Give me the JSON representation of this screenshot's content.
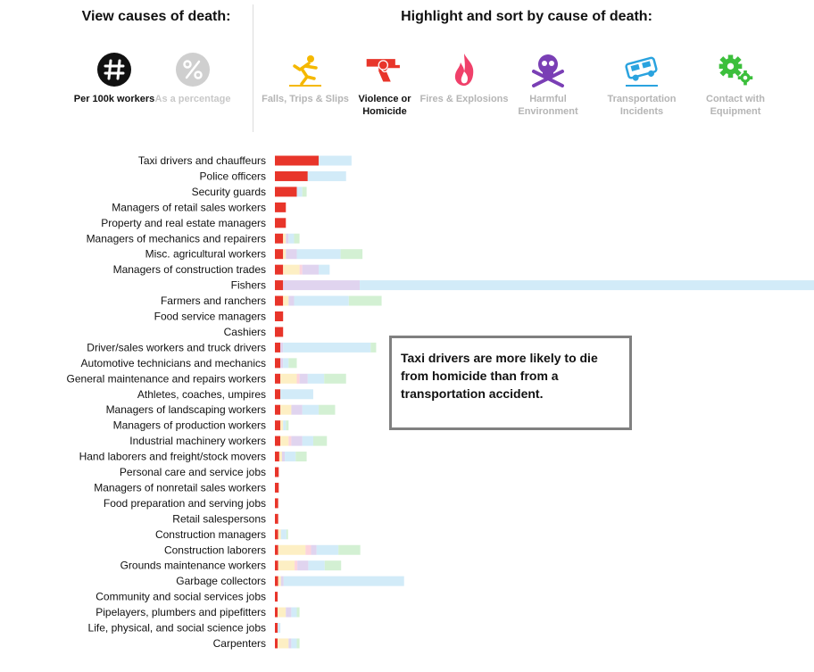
{
  "header": {
    "view_title": "View causes of death:",
    "highlight_title": "Highlight and sort by cause of death:"
  },
  "view_options": [
    {
      "label": "Per 100k workers",
      "icon": "number-sign-icon",
      "active": true
    },
    {
      "label": "As a percentage",
      "icon": "percent-icon",
      "active": false
    }
  ],
  "causes": [
    {
      "label": "Falls, Trips & Slips",
      "icon": "falling-person-icon",
      "color": "#f5b800",
      "light": "#fdefc4",
      "active": false
    },
    {
      "label": "Violence or Homicide",
      "icon": "revolver-icon",
      "color": "#e8352a",
      "light": "#fbd3cf",
      "active": true
    },
    {
      "label": "Fires & Explosions",
      "icon": "flame-icon",
      "color": "#f0406a",
      "light": "#fcd4dd",
      "active": false
    },
    {
      "label": "Harmful Environment",
      "icon": "skull-crossbones-icon",
      "color": "#7a3fb5",
      "light": "#e0d4ef",
      "active": false
    },
    {
      "label": "Transportation Incidents",
      "icon": "car-icon",
      "color": "#2aa3df",
      "light": "#d2ebf8",
      "active": false
    },
    {
      "label": "Contact with Equipment",
      "icon": "gears-icon",
      "color": "#3cbf3c",
      "light": "#d3f0d3",
      "active": false
    }
  ],
  "callout": "Taxi drivers are more likely to die from homicide than from a transportation accident.",
  "chart_data": {
    "type": "bar",
    "orientation": "horizontal",
    "stacked": true,
    "unit": "deaths per 100k workers",
    "series_order": [
      "Violence or Homicide",
      "Falls, Trips & Slips",
      "Fires & Explosions",
      "Harmful Environment",
      "Transportation Incidents",
      "Contact with Equipment"
    ],
    "categories": [
      "Taxi drivers and chauffeurs",
      "Police officers",
      "Security guards",
      "Managers of retail sales workers",
      "Property and real estate managers",
      "Managers of mechanics and repairers",
      "Misc. agricultural workers",
      "Managers of construction trades",
      "Fishers",
      "Farmers and ranchers",
      "Food service managers",
      "Cashiers",
      "Driver/sales workers and truck drivers",
      "Automotive technicians and mechanics",
      "General maintenance and repairs workers",
      "Athletes, coaches, umpires",
      "Managers of landscaping workers",
      "Managers of production workers",
      "Industrial machinery workers",
      "Hand laborers and freight/stock movers",
      "Personal care and service jobs",
      "Managers of nonretail sales workers",
      "Food preparation and serving jobs",
      "Retail salespersons",
      "Construction managers",
      "Construction laborers",
      "Grounds maintenance workers",
      "Garbage collectors",
      "Community and social services jobs",
      "Pipelayers, plumbers and pipefitters",
      "Life, physical, and social science jobs",
      "Carpenters"
    ],
    "values": [
      [
        8.0,
        0,
        0,
        0,
        6.0,
        0
      ],
      [
        6.0,
        0,
        0,
        0,
        7.0,
        0
      ],
      [
        4.0,
        0,
        0,
        0,
        1.0,
        0.8
      ],
      [
        2.0,
        0,
        0,
        0,
        0,
        0
      ],
      [
        2.0,
        0,
        0,
        0,
        0,
        0
      ],
      [
        1.5,
        0.5,
        0,
        0.5,
        1.0,
        1.0
      ],
      [
        1.5,
        0.5,
        0,
        2.0,
        8.0,
        4.0
      ],
      [
        1.5,
        3.0,
        0.5,
        3.0,
        2.0,
        0
      ],
      [
        1.5,
        0,
        0,
        14.0,
        89.0,
        0
      ],
      [
        1.5,
        1.0,
        0,
        1.0,
        10.0,
        6.0
      ],
      [
        1.5,
        0,
        0,
        0,
        0,
        0
      ],
      [
        1.5,
        0,
        0,
        0,
        0,
        0
      ],
      [
        1.0,
        0,
        0,
        0.5,
        16.0,
        1.0
      ],
      [
        1.0,
        0,
        0,
        0.5,
        1.0,
        1.5
      ],
      [
        1.0,
        3.0,
        0.5,
        1.5,
        3.0,
        4.0
      ],
      [
        1.0,
        0,
        0,
        0,
        6.0,
        0
      ],
      [
        1.0,
        2.0,
        0,
        2.0,
        3.0,
        3.0
      ],
      [
        1.0,
        0.5,
        0,
        0,
        0.5,
        0.5
      ],
      [
        1.0,
        1.5,
        0.5,
        2.0,
        2.0,
        2.5
      ],
      [
        0.8,
        0.5,
        0,
        0.5,
        2.0,
        2.0
      ],
      [
        0.7,
        0,
        0,
        0,
        0,
        0
      ],
      [
        0.7,
        0,
        0,
        0,
        0,
        0
      ],
      [
        0.6,
        0,
        0,
        0,
        0,
        0
      ],
      [
        0.6,
        0,
        0,
        0,
        0,
        0
      ],
      [
        0.6,
        0.5,
        0,
        0,
        1.0,
        0.3
      ],
      [
        0.6,
        5.0,
        1.0,
        1.0,
        4.0,
        4.0
      ],
      [
        0.6,
        3.0,
        0.5,
        2.0,
        3.0,
        3.0
      ],
      [
        0.6,
        0.5,
        0,
        0.5,
        22.0,
        0
      ],
      [
        0.5,
        0,
        0,
        0,
        0,
        0
      ],
      [
        0.5,
        1.5,
        0,
        1.0,
        1.0,
        0.5
      ],
      [
        0.5,
        0,
        0,
        0,
        0.5,
        0
      ],
      [
        0.5,
        2.0,
        0,
        0.5,
        1.0,
        0.5
      ]
    ],
    "xlim": [
      0,
      105
    ],
    "legend": "top"
  }
}
